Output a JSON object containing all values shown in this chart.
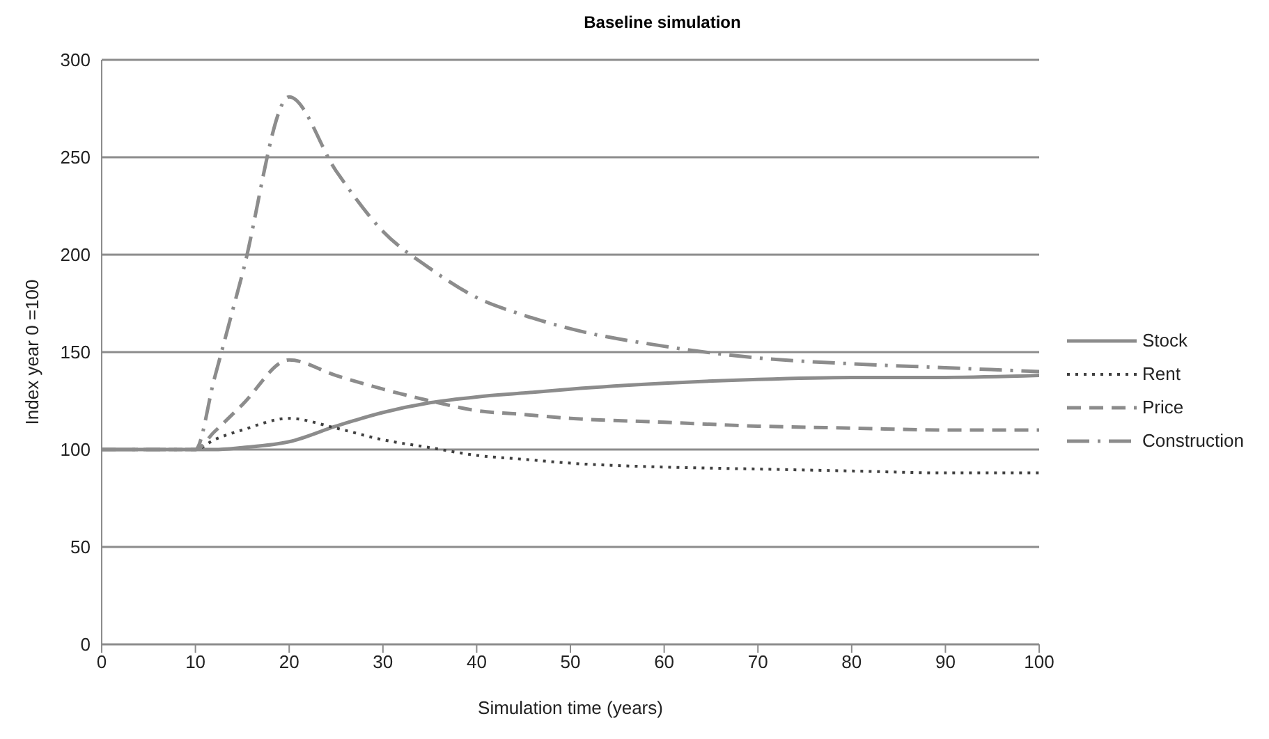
{
  "chart_data": {
    "type": "line",
    "title": "Baseline simulation",
    "xlabel": "Simulation time (years)",
    "ylabel": "Index year 0 =100",
    "x": [
      0,
      10,
      12,
      15,
      20,
      25,
      30,
      35,
      40,
      45,
      50,
      60,
      70,
      80,
      90,
      100
    ],
    "series": [
      {
        "name": "Stock",
        "color": "#8c8c8c",
        "line_style": "solid",
        "values": [
          100,
          100,
          100,
          101,
          104,
          112,
          119,
          124,
          127,
          129,
          131,
          134,
          136,
          137,
          137,
          138
        ]
      },
      {
        "name": "Rent",
        "color": "#404040",
        "line_style": "dotted",
        "values": [
          100,
          100,
          105,
          110,
          116,
          111,
          105,
          101,
          97,
          95,
          93,
          91,
          90,
          89,
          88,
          88
        ]
      },
      {
        "name": "Price",
        "color": "#8c8c8c",
        "line_style": "dashed",
        "values": [
          100,
          100,
          109,
          123,
          146,
          138,
          131,
          125,
          120,
          118,
          116,
          114,
          112,
          111,
          110,
          110
        ]
      },
      {
        "name": "Construction",
        "color": "#8c8c8c",
        "line_style": "dashdot",
        "values": [
          100,
          100,
          136,
          190,
          281,
          243,
          212,
          193,
          178,
          169,
          162,
          153,
          147,
          144,
          142,
          140
        ]
      }
    ],
    "xlim": [
      0,
      100
    ],
    "xticks": [
      0,
      10,
      20,
      30,
      40,
      50,
      60,
      70,
      80,
      90,
      100
    ],
    "ylim": [
      0,
      300
    ],
    "yticks": [
      0,
      50,
      100,
      150,
      200,
      250,
      300
    ],
    "grid": "y",
    "legend": "right",
    "marker": "none"
  }
}
